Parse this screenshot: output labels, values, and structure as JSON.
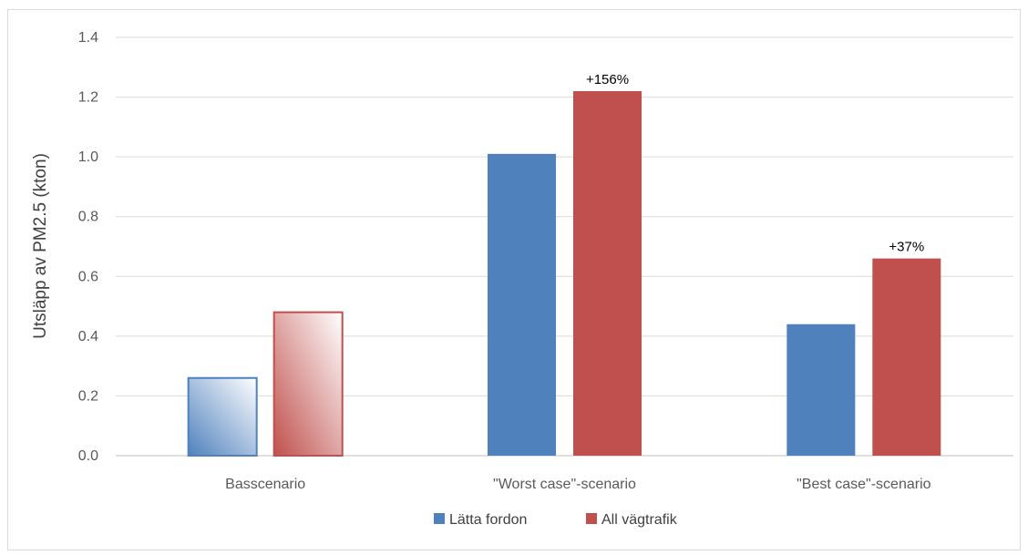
{
  "chart_data": {
    "type": "bar",
    "title": "",
    "xlabel": "",
    "ylabel": "Utsläpp av PM2.5 (kton)",
    "ylim": [
      0,
      1.4
    ],
    "yticks": [
      "0.0",
      "0.2",
      "0.4",
      "0.6",
      "0.8",
      "1.0",
      "1.2",
      "1.4"
    ],
    "grid": true,
    "legend_position": "bottom",
    "categories": [
      "Basscenario",
      "\"Worst case\"-scenario",
      "\"Best case\"-scenario"
    ],
    "series": [
      {
        "name": "Lätta fordon",
        "color": "#4f81bd",
        "values": [
          0.26,
          1.01,
          0.44
        ],
        "gradient_fill": [
          true,
          false,
          false
        ]
      },
      {
        "name": "All vägtrafik",
        "color": "#c0504d",
        "values": [
          0.48,
          1.22,
          0.66
        ],
        "gradient_fill": [
          true,
          false,
          false
        ],
        "data_labels": [
          "",
          "+156%",
          "+37%"
        ]
      }
    ]
  }
}
